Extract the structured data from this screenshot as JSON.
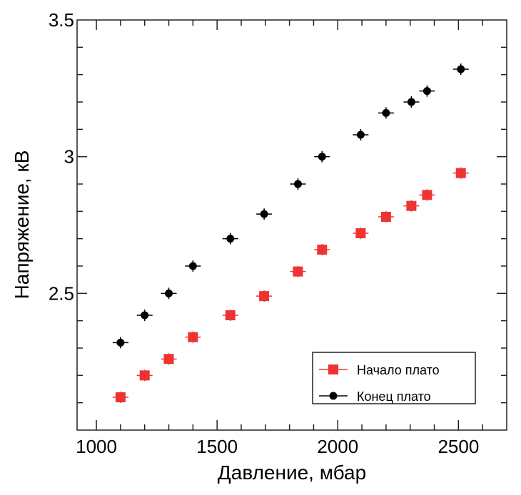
{
  "chart_data": {
    "type": "scatter",
    "xlabel": "Давление, мбар",
    "ylabel": "Напряжение, кВ",
    "xlim": [
      920,
      2700
    ],
    "ylim": [
      2.0,
      3.5
    ],
    "xticks": [
      1000,
      1500,
      2000,
      2500
    ],
    "xtick_labels": [
      "1000",
      "1500",
      "2000",
      "2500"
    ],
    "yticks": [
      2.5,
      3,
      3.5
    ],
    "ytick_labels": [
      "2.5",
      "3",
      "3.5"
    ],
    "grid": false,
    "legend_position": "bottom-right",
    "x": [
      1100,
      1200,
      1300,
      1400,
      1555,
      1695,
      1835,
      1935,
      2095,
      2200,
      2305,
      2370,
      2510
    ],
    "series": [
      {
        "name": "Начало плато",
        "color": "#ee3333",
        "marker": "square",
        "values": [
          2.12,
          2.2,
          2.26,
          2.34,
          2.42,
          2.49,
          2.58,
          2.66,
          2.72,
          2.78,
          2.82,
          2.86,
          2.94
        ]
      },
      {
        "name": "Конец плато",
        "color": "#000000",
        "marker": "circle",
        "values": [
          2.32,
          2.42,
          2.5,
          2.6,
          2.7,
          2.79,
          2.9,
          3.0,
          3.08,
          3.16,
          3.2,
          3.24,
          3.32
        ]
      }
    ]
  }
}
